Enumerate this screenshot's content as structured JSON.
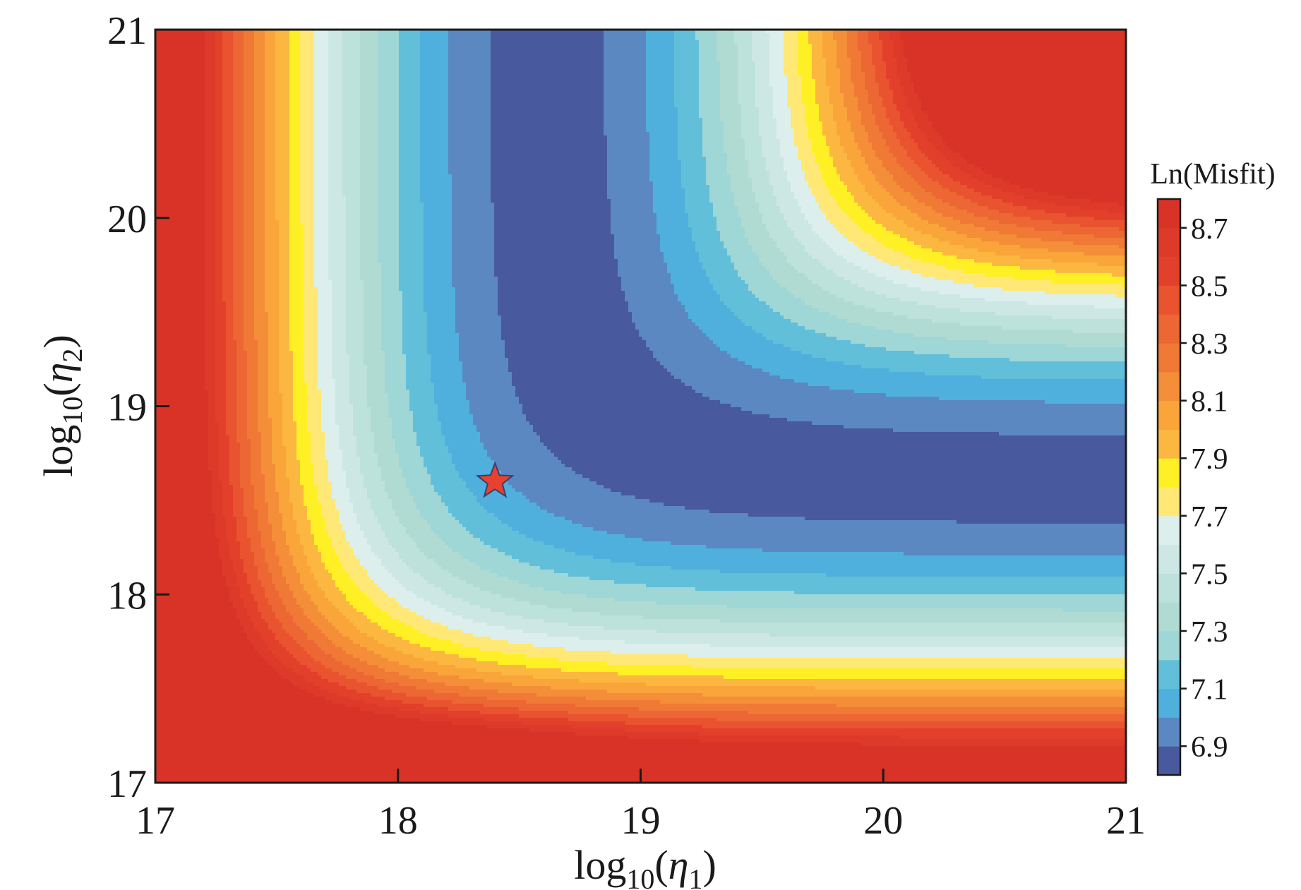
{
  "chart_data": {
    "type": "heatmap",
    "subtype": "filled-contour",
    "x_axis": {
      "label_prefix": "log",
      "label_sub": "10",
      "label_open": "(",
      "label_var": "η",
      "label_var_sub": "1",
      "label_close": ")",
      "range": [
        17,
        21
      ],
      "ticks": [
        17,
        18,
        19,
        20,
        21
      ],
      "tick_labels": [
        "17",
        "18",
        "19",
        "20",
        "21"
      ]
    },
    "y_axis": {
      "label_prefix": "log",
      "label_sub": "10",
      "label_open": "(",
      "label_var": "η",
      "label_var_sub": "2",
      "label_close": ")",
      "range": [
        17,
        21
      ],
      "ticks": [
        17,
        18,
        19,
        20,
        21
      ],
      "tick_labels": [
        "17",
        "18",
        "19",
        "20",
        "21"
      ]
    },
    "colorbar": {
      "title": "Ln(Misfit)",
      "range": [
        6.8,
        8.8
      ],
      "levels": [
        6.8,
        6.9,
        7.0,
        7.1,
        7.2,
        7.3,
        7.4,
        7.5,
        7.6,
        7.7,
        7.8,
        7.9,
        8.0,
        8.1,
        8.2,
        8.3,
        8.4,
        8.5,
        8.6,
        8.7,
        8.8
      ],
      "band_colors": [
        "#48599e",
        "#5b88c1",
        "#4fb0dd",
        "#61bfda",
        "#9fd6d6",
        "#b0dbd3",
        "#bde1db",
        "#cde8e4",
        "#dcefec",
        "#ffe875",
        "#fff026",
        "#fbb73f",
        "#f9a53a",
        "#f48e38",
        "#ef7935",
        "#ec6733",
        "#e9532f",
        "#e2402b",
        "#de3a2a",
        "#d93328"
      ],
      "ticks": [
        6.9,
        7.1,
        7.3,
        7.5,
        7.7,
        7.9,
        8.1,
        8.3,
        8.5,
        8.7
      ],
      "tick_labels": [
        "6.9",
        "7.1",
        "7.3",
        "7.5",
        "7.7",
        "7.9",
        "8.1",
        "8.3",
        "8.5",
        "8.7"
      ]
    },
    "best_fit_marker": {
      "symbol": "star",
      "color": "#e8412f",
      "x": 18.4,
      "y": 18.6
    },
    "grid": false
  }
}
